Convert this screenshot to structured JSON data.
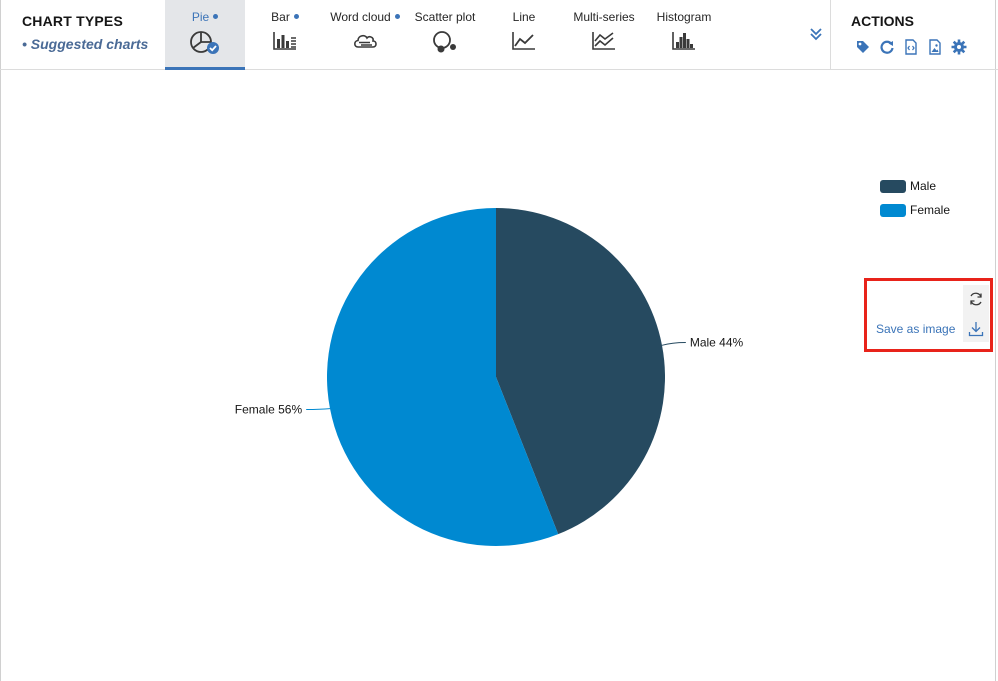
{
  "chart_types": {
    "title": "CHART TYPES",
    "suggested_label": "Suggested charts",
    "tabs": [
      {
        "label": "Pie",
        "suggested": true,
        "active": true,
        "icon": "pie-chart-icon"
      },
      {
        "label": "Bar",
        "suggested": true,
        "active": false,
        "icon": "bar-chart-icon"
      },
      {
        "label": "Word cloud",
        "suggested": true,
        "active": false,
        "icon": "word-cloud-icon"
      },
      {
        "label": "Scatter plot",
        "suggested": false,
        "active": false,
        "icon": "scatter-plot-icon"
      },
      {
        "label": "Line",
        "suggested": false,
        "active": false,
        "icon": "line-chart-icon"
      },
      {
        "label": "Multi-series",
        "suggested": false,
        "active": false,
        "icon": "multi-series-icon"
      },
      {
        "label": "Histogram",
        "suggested": false,
        "active": false,
        "icon": "histogram-icon"
      }
    ]
  },
  "actions": {
    "title": "ACTIONS",
    "icons": [
      "tag-icon",
      "refresh-icon",
      "code-file-icon",
      "image-file-icon",
      "gear-icon"
    ]
  },
  "chart_tools": {
    "save_label": "Save as image",
    "icons": [
      "reset-icon",
      "download-icon"
    ]
  },
  "colors": {
    "male": "#264a60",
    "female": "#0089d1",
    "accent": "#3b74b8",
    "highlight": "#e8231a"
  },
  "chart_data": {
    "type": "pie",
    "title": "",
    "series": [
      {
        "name": "Male",
        "value": 44,
        "label": "Male 44%",
        "color": "#264a60"
      },
      {
        "name": "Female",
        "value": 56,
        "label": "Female 56%",
        "color": "#0089d1"
      }
    ],
    "legend": {
      "placement": "top-right",
      "entries": [
        "Male",
        "Female"
      ]
    }
  }
}
